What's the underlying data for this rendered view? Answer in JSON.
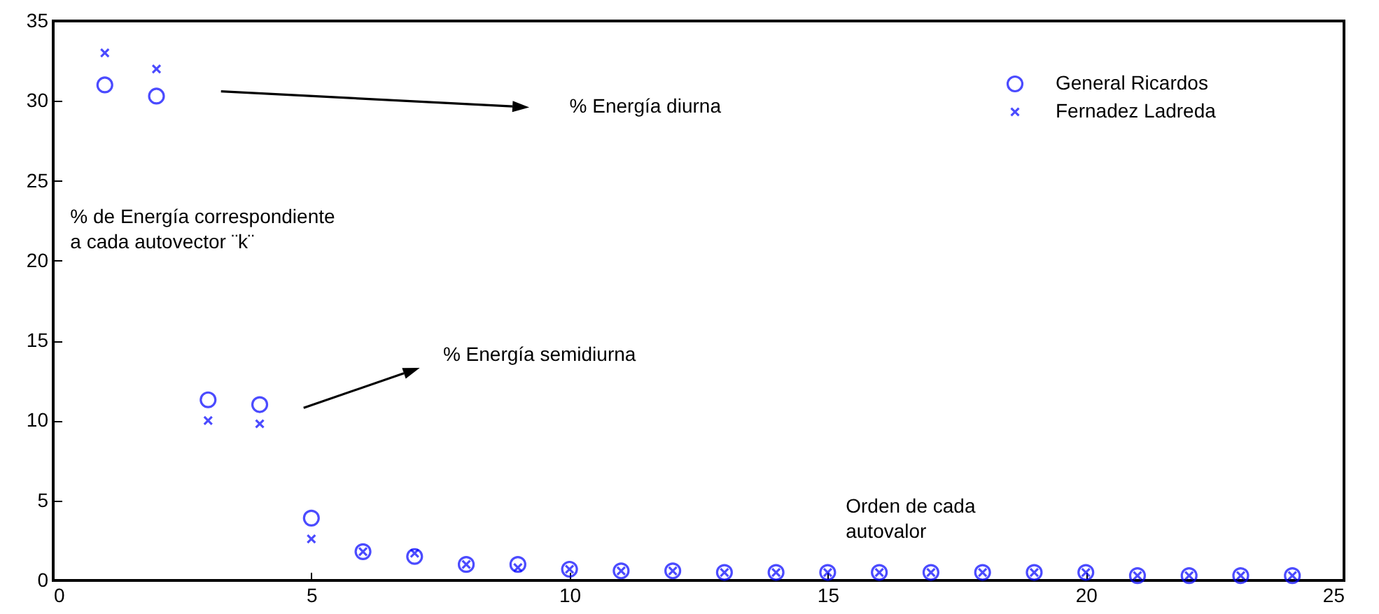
{
  "chart_data": {
    "type": "scatter",
    "x": [
      1,
      2,
      3,
      4,
      5,
      6,
      7,
      8,
      9,
      10,
      11,
      12,
      13,
      14,
      15,
      16,
      17,
      18,
      19,
      20,
      21,
      22,
      23,
      24
    ],
    "series": [
      {
        "name": "General Ricardos",
        "color": "#0000ff",
        "marker": "circle",
        "values": [
          31,
          30.3,
          11.3,
          11,
          3.9,
          1.8,
          1.5,
          1.0,
          1.0,
          0.7,
          0.6,
          0.6,
          0.5,
          0.5,
          0.5,
          0.5,
          0.5,
          0.5,
          0.5,
          0.5,
          0.3,
          0.3,
          0.3,
          0.3
        ]
      },
      {
        "name": "Fernadez Ladreda",
        "color": "#0000ff",
        "marker": "cross",
        "values": [
          33,
          32,
          10,
          9.8,
          2.6,
          1.8,
          1.7,
          1.0,
          0.8,
          0.7,
          0.6,
          0.6,
          0.5,
          0.5,
          0.5,
          0.5,
          0.5,
          0.5,
          0.5,
          0.5,
          0.3,
          0.3,
          0.3,
          0.3
        ]
      }
    ],
    "annotations": [
      "% Energía diurna",
      "% Energía semidiurna",
      "% de Energía correspondiente\na cada autovector ¨k¨",
      "Orden de cada\nautovalor"
    ],
    "xlim": [
      0,
      25
    ],
    "xticks": [
      0,
      5,
      10,
      15,
      20,
      25
    ],
    "ylim": [
      0,
      35
    ],
    "yticks": [
      0,
      5,
      10,
      15,
      20,
      25,
      30,
      35
    ],
    "grid": false,
    "legend": "top right"
  }
}
